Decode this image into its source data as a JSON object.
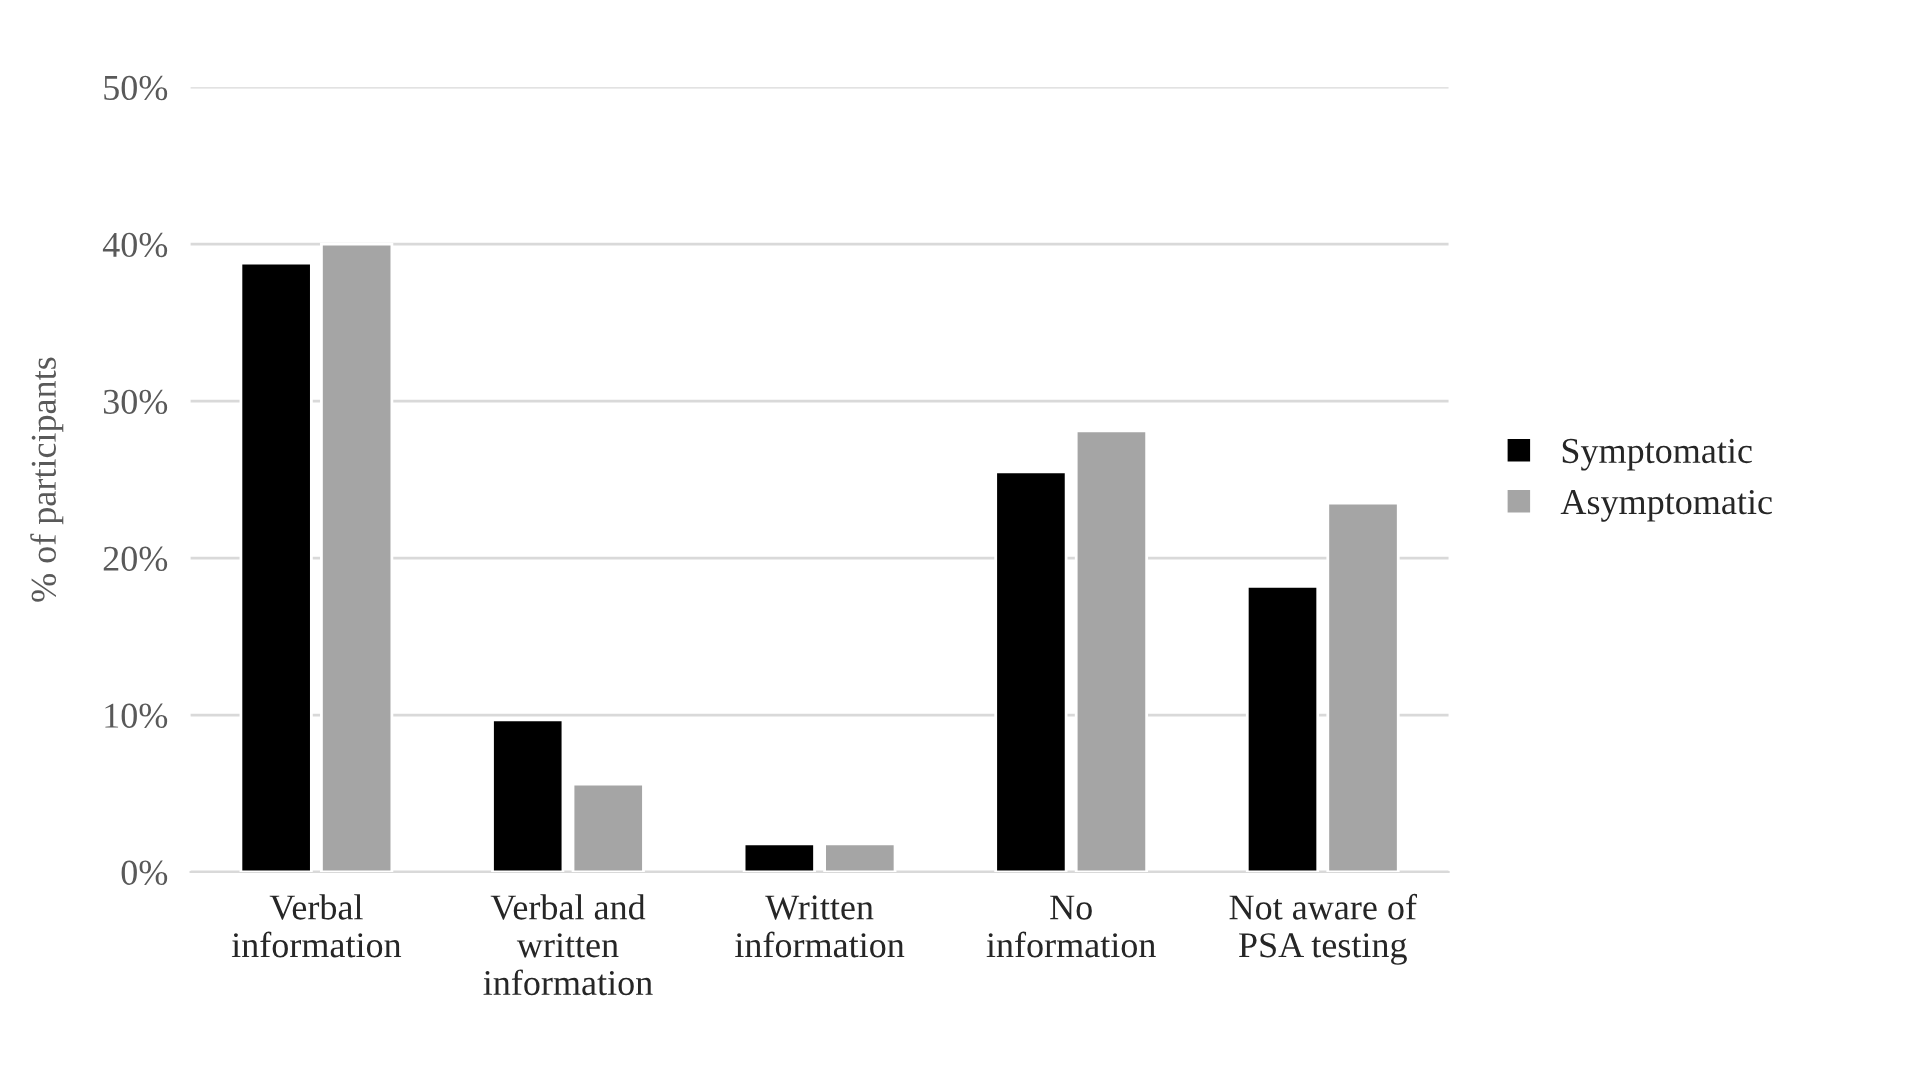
{
  "chart_data": {
    "type": "bar",
    "ylabel": "% of participants",
    "categories": [
      "Verbal\ninformation",
      "Verbal and\nwritten\ninformation",
      "Written\ninformation",
      "No\ninformation",
      "Not aware of\nPSA testing"
    ],
    "series": [
      {
        "name": "Symptomatic",
        "color": "#000000",
        "values": [
          38.8,
          9.7,
          1.8,
          25.5,
          18.2
        ]
      },
      {
        "name": "Asymptomatic",
        "color": "#a5a5a5",
        "values": [
          40.0,
          5.6,
          1.8,
          28.1,
          23.5
        ]
      }
    ],
    "ylim": [
      0,
      50
    ],
    "yticks": [
      {
        "value": 0,
        "label": "0%"
      },
      {
        "value": 10,
        "label": "10%"
      },
      {
        "value": 20,
        "label": "20%"
      },
      {
        "value": 30,
        "label": "30%"
      },
      {
        "value": 40,
        "label": "40%"
      },
      {
        "value": 50,
        "label": "50%"
      }
    ],
    "grid": "y",
    "legend": "right"
  }
}
